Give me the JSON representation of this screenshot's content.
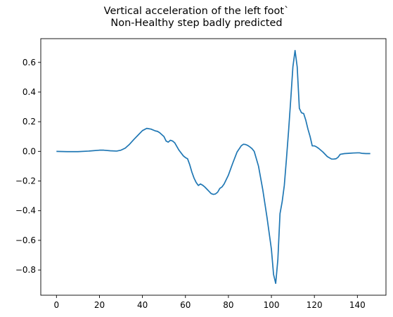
{
  "chart_data": {
    "type": "line",
    "title": "Vertical acceleration of the left foot`",
    "subtitle": "Non-Healthy step badly predicted",
    "xlabel": "",
    "ylabel": "",
    "xlim": [
      -7.3,
      153.3
    ],
    "ylim": [
      -0.97,
      0.76
    ],
    "grid": false,
    "x_ticks": [
      0,
      20,
      40,
      60,
      80,
      100,
      120,
      140
    ],
    "y_ticks": [
      -0.8,
      -0.6,
      -0.4,
      -0.2,
      0.0,
      0.2,
      0.4,
      0.6
    ],
    "x_tick_labels": [
      "0",
      "20",
      "40",
      "60",
      "80",
      "100",
      "120",
      "140"
    ],
    "y_tick_labels": [
      "−0.8",
      "−0.6",
      "−0.4",
      "−0.2",
      "0.0",
      "0.2",
      "0.4",
      "0.6"
    ],
    "series": [
      {
        "color": "#1f77b4",
        "x": [
          0,
          5,
          10,
          15,
          20,
          22,
          25,
          28,
          30,
          32,
          34,
          36,
          38,
          40,
          42,
          44,
          46,
          47,
          48,
          50,
          51,
          52,
          53,
          54,
          55,
          57,
          59,
          60,
          61,
          62,
          63,
          64,
          65,
          66,
          67,
          68,
          69,
          70,
          71,
          72,
          73,
          74,
          75,
          76,
          77,
          78,
          80,
          82,
          84,
          86,
          87,
          88,
          89,
          90,
          91,
          92,
          94,
          96,
          98,
          100,
          101,
          102,
          103,
          104,
          105,
          106,
          107,
          108,
          109,
          110,
          111,
          112,
          113,
          114,
          115,
          116,
          117,
          118,
          119,
          120,
          121,
          122,
          124,
          126,
          128,
          129,
          130,
          131,
          132,
          134,
          136,
          138,
          140,
          141,
          142,
          144,
          146
        ],
        "y": [
          0.0,
          -0.002,
          -0.002,
          0.002,
          0.008,
          0.008,
          0.004,
          0.002,
          0.008,
          0.022,
          0.048,
          0.08,
          0.11,
          0.14,
          0.155,
          0.15,
          0.138,
          0.135,
          0.126,
          0.1,
          0.07,
          0.062,
          0.075,
          0.07,
          0.058,
          0.008,
          -0.03,
          -0.042,
          -0.05,
          -0.09,
          -0.14,
          -0.18,
          -0.21,
          -0.23,
          -0.22,
          -0.228,
          -0.24,
          -0.255,
          -0.27,
          -0.285,
          -0.29,
          -0.287,
          -0.275,
          -0.25,
          -0.24,
          -0.22,
          -0.16,
          -0.08,
          -0.005,
          0.038,
          0.048,
          0.046,
          0.04,
          0.03,
          0.018,
          0.0,
          -0.1,
          -0.26,
          -0.45,
          -0.66,
          -0.83,
          -0.89,
          -0.73,
          -0.42,
          -0.34,
          -0.23,
          -0.05,
          0.14,
          0.35,
          0.57,
          0.68,
          0.57,
          0.29,
          0.26,
          0.255,
          0.21,
          0.15,
          0.1,
          0.037,
          0.037,
          0.03,
          0.02,
          -0.005,
          -0.035,
          -0.052,
          -0.052,
          -0.05,
          -0.04,
          -0.02,
          -0.015,
          -0.013,
          -0.011,
          -0.01,
          -0.01,
          -0.013,
          -0.015,
          -0.015
        ]
      }
    ]
  }
}
